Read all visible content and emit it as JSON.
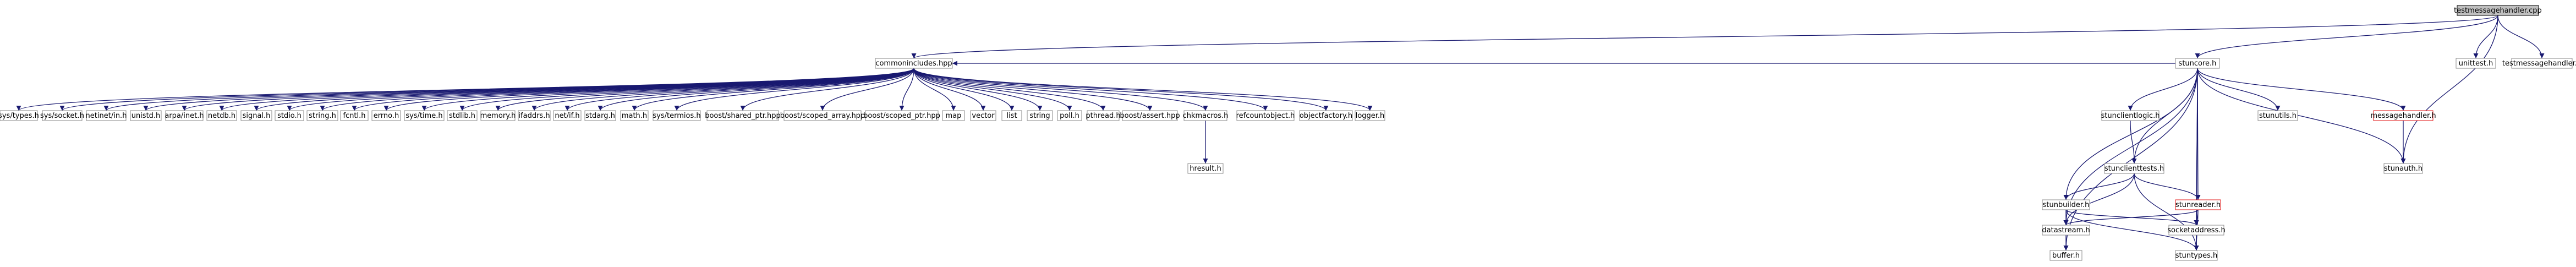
{
  "graph": {
    "colors": {
      "edge": "#191970",
      "root_fill": "#bfbfbf",
      "node_fill": "#ffffff",
      "node_border": "#8a8a8a",
      "red_border": "#e01010"
    },
    "nodes": [
      {
        "id": "testmessagehandler_cpp",
        "label": "testmessagehandler.cpp",
        "style": "root"
      },
      {
        "id": "commonincludes_hpp",
        "label": "commonincludes.hpp"
      },
      {
        "id": "stuncore_h",
        "label": "stuncore.h"
      },
      {
        "id": "unittest_h",
        "label": "unittest.h"
      },
      {
        "id": "testmessagehandler_h",
        "label": "testmessagehandler.h"
      },
      {
        "id": "sys_types_h",
        "label": "sys/types.h"
      },
      {
        "id": "sys_socket_h",
        "label": "sys/socket.h"
      },
      {
        "id": "netinet_in_h",
        "label": "netinet/in.h"
      },
      {
        "id": "unistd_h",
        "label": "unistd.h"
      },
      {
        "id": "arpa_inet_h",
        "label": "arpa/inet.h"
      },
      {
        "id": "netdb_h",
        "label": "netdb.h"
      },
      {
        "id": "signal_h",
        "label": "signal.h"
      },
      {
        "id": "stdio_h",
        "label": "stdio.h"
      },
      {
        "id": "string_h",
        "label": "string.h"
      },
      {
        "id": "fcntl_h",
        "label": "fcntl.h"
      },
      {
        "id": "errno_h",
        "label": "errno.h"
      },
      {
        "id": "sys_time_h",
        "label": "sys/time.h"
      },
      {
        "id": "stdlib_h",
        "label": "stdlib.h"
      },
      {
        "id": "memory_h",
        "label": "memory.h"
      },
      {
        "id": "ifaddrs_h",
        "label": "ifaddrs.h"
      },
      {
        "id": "net_if_h",
        "label": "net/if.h"
      },
      {
        "id": "stdarg_h",
        "label": "stdarg.h"
      },
      {
        "id": "math_h",
        "label": "math.h"
      },
      {
        "id": "sys_termios_h",
        "label": "sys/termios.h"
      },
      {
        "id": "boost_shared_ptr_hpp",
        "label": "boost/shared_ptr.hpp"
      },
      {
        "id": "boost_scoped_array_hpp",
        "label": "boost/scoped_array.hpp"
      },
      {
        "id": "boost_scoped_ptr_hpp",
        "label": "boost/scoped_ptr.hpp"
      },
      {
        "id": "map",
        "label": "map"
      },
      {
        "id": "vector",
        "label": "vector"
      },
      {
        "id": "list",
        "label": "list"
      },
      {
        "id": "string",
        "label": "string"
      },
      {
        "id": "poll_h",
        "label": "poll.h"
      },
      {
        "id": "pthread_h",
        "label": "pthread.h"
      },
      {
        "id": "boost_assert_hpp",
        "label": "boost/assert.hpp"
      },
      {
        "id": "chkmacros_h",
        "label": "chkmacros.h"
      },
      {
        "id": "refcountobject_h",
        "label": "refcountobject.h"
      },
      {
        "id": "objectfactory_h",
        "label": "objectfactory.h"
      },
      {
        "id": "logger_h",
        "label": "logger.h"
      },
      {
        "id": "hresult_h",
        "label": "hresult.h"
      },
      {
        "id": "stunclientlogic_h",
        "label": "stunclientlogic.h"
      },
      {
        "id": "stunutils_h",
        "label": "stunutils.h"
      },
      {
        "id": "messagehandler_h",
        "label": "messagehandler.h",
        "style": "red"
      },
      {
        "id": "stunauth_h",
        "label": "stunauth.h"
      },
      {
        "id": "stunclienttests_h",
        "label": "stunclienttests.h"
      },
      {
        "id": "stunbuilder_h",
        "label": "stunbuilder.h"
      },
      {
        "id": "stunreader_h",
        "label": "stunreader.h",
        "style": "red"
      },
      {
        "id": "datastream_h",
        "label": "datastream.h"
      },
      {
        "id": "socketaddress_h",
        "label": "socketaddress.h"
      },
      {
        "id": "buffer_h",
        "label": "buffer.h"
      },
      {
        "id": "stuntypes_h",
        "label": "stuntypes.h"
      }
    ],
    "edges": [
      [
        "testmessagehandler_cpp",
        "commonincludes_hpp"
      ],
      [
        "testmessagehandler_cpp",
        "stuncore_h"
      ],
      [
        "testmessagehandler_cpp",
        "unittest_h"
      ],
      [
        "testmessagehandler_cpp",
        "testmessagehandler_h"
      ],
      [
        "testmessagehandler_cpp",
        "stunauth_h"
      ],
      [
        "commonincludes_hpp",
        "sys_types_h"
      ],
      [
        "commonincludes_hpp",
        "sys_socket_h"
      ],
      [
        "commonincludes_hpp",
        "netinet_in_h"
      ],
      [
        "commonincludes_hpp",
        "unistd_h"
      ],
      [
        "commonincludes_hpp",
        "arpa_inet_h"
      ],
      [
        "commonincludes_hpp",
        "netdb_h"
      ],
      [
        "commonincludes_hpp",
        "signal_h"
      ],
      [
        "commonincludes_hpp",
        "stdio_h"
      ],
      [
        "commonincludes_hpp",
        "string_h"
      ],
      [
        "commonincludes_hpp",
        "fcntl_h"
      ],
      [
        "commonincludes_hpp",
        "errno_h"
      ],
      [
        "commonincludes_hpp",
        "sys_time_h"
      ],
      [
        "commonincludes_hpp",
        "stdlib_h"
      ],
      [
        "commonincludes_hpp",
        "memory_h"
      ],
      [
        "commonincludes_hpp",
        "ifaddrs_h"
      ],
      [
        "commonincludes_hpp",
        "net_if_h"
      ],
      [
        "commonincludes_hpp",
        "stdarg_h"
      ],
      [
        "commonincludes_hpp",
        "math_h"
      ],
      [
        "commonincludes_hpp",
        "sys_termios_h"
      ],
      [
        "commonincludes_hpp",
        "boost_shared_ptr_hpp"
      ],
      [
        "commonincludes_hpp",
        "boost_scoped_array_hpp"
      ],
      [
        "commonincludes_hpp",
        "boost_scoped_ptr_hpp"
      ],
      [
        "commonincludes_hpp",
        "map"
      ],
      [
        "commonincludes_hpp",
        "vector"
      ],
      [
        "commonincludes_hpp",
        "list"
      ],
      [
        "commonincludes_hpp",
        "string"
      ],
      [
        "commonincludes_hpp",
        "poll_h"
      ],
      [
        "commonincludes_hpp",
        "pthread_h"
      ],
      [
        "commonincludes_hpp",
        "boost_assert_hpp"
      ],
      [
        "commonincludes_hpp",
        "chkmacros_h"
      ],
      [
        "commonincludes_hpp",
        "refcountobject_h"
      ],
      [
        "commonincludes_hpp",
        "objectfactory_h"
      ],
      [
        "commonincludes_hpp",
        "logger_h"
      ],
      [
        "chkmacros_h",
        "hresult_h"
      ],
      [
        "stuncore_h",
        "commonincludes_hpp"
      ],
      [
        "stuncore_h",
        "stunclientlogic_h"
      ],
      [
        "stuncore_h",
        "stunutils_h"
      ],
      [
        "stuncore_h",
        "messagehandler_h"
      ],
      [
        "stuncore_h",
        "stunclienttests_h"
      ],
      [
        "stuncore_h",
        "stunbuilder_h"
      ],
      [
        "stuncore_h",
        "stunreader_h"
      ],
      [
        "stuncore_h",
        "socketaddress_h"
      ],
      [
        "stuncore_h",
        "stuntypes_h"
      ],
      [
        "stuncore_h",
        "datastream_h"
      ],
      [
        "stuncore_h",
        "buffer_h"
      ],
      [
        "stuncore_h",
        "stunauth_h"
      ],
      [
        "messagehandler_h",
        "stunauth_h"
      ],
      [
        "stunclientlogic_h",
        "stunclienttests_h"
      ],
      [
        "stunclienttests_h",
        "stunbuilder_h"
      ],
      [
        "stunclienttests_h",
        "stunreader_h"
      ],
      [
        "stunclienttests_h",
        "datastream_h"
      ],
      [
        "stunclienttests_h",
        "stuntypes_h"
      ],
      [
        "stunbuilder_h",
        "datastream_h"
      ],
      [
        "stunbuilder_h",
        "socketaddress_h"
      ],
      [
        "stunbuilder_h",
        "stuntypes_h"
      ],
      [
        "stunreader_h",
        "datastream_h"
      ],
      [
        "stunreader_h",
        "socketaddress_h"
      ],
      [
        "stunreader_h",
        "stuntypes_h"
      ],
      [
        "datastream_h",
        "buffer_h"
      ],
      [
        "socketaddress_h",
        "stuntypes_h"
      ]
    ]
  }
}
